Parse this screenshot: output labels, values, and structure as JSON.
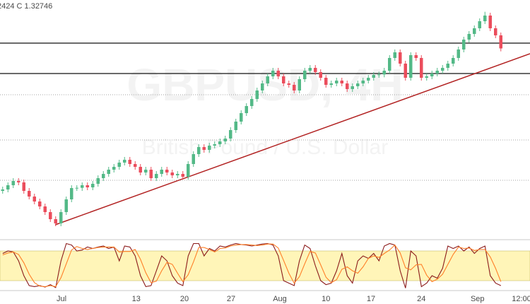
{
  "chart_data": {
    "type": "candlestick",
    "header": "2424 C 1.32746",
    "title": "GBPUSD, 4H",
    "subtitle": "British Pound / U.S. Dollar",
    "up_color": "#53b987",
    "down_color": "#eb4d5c",
    "xlim": [
      0,
      100
    ],
    "xticks": [
      {
        "value": 11.6,
        "label": "Jul"
      },
      {
        "value": 25.7,
        "label": "13"
      },
      {
        "value": 34.8,
        "label": "20"
      },
      {
        "value": 43.6,
        "label": "27"
      },
      {
        "value": 52.8,
        "label": "Aug"
      },
      {
        "value": 61.5,
        "label": "10"
      },
      {
        "value": 70,
        "label": "17"
      },
      {
        "value": 79.5,
        "label": "24"
      },
      {
        "value": 90.1,
        "label": "Sep"
      },
      {
        "value": 98.4,
        "label": "12:00"
      }
    ],
    "ylim": [
      1.2466,
      1.348
    ],
    "hlines": [
      {
        "value": 1.3297,
        "style": "solid"
      },
      {
        "value": 1.3168,
        "style": "solid"
      },
      {
        "value": 1.3078,
        "style": "dotted"
      },
      {
        "value": 1.2886,
        "style": "dotted"
      },
      {
        "value": 1.2715,
        "style": "dotted"
      }
    ],
    "trendline": {
      "color": "#b22222",
      "x": [
        10.4,
        100
      ],
      "y": [
        1.2526,
        1.3252
      ]
    },
    "candles": [
      [
        1.267,
        1.2688,
        1.2658,
        1.2676
      ],
      [
        1.2676,
        1.2706,
        1.2664,
        1.2694
      ],
      [
        1.2694,
        1.2724,
        1.2682,
        1.2712
      ],
      [
        1.2712,
        1.2724,
        1.2694,
        1.2706
      ],
      [
        1.2706,
        1.2718,
        1.2658,
        1.267
      ],
      [
        1.267,
        1.2682,
        1.2634,
        1.2646
      ],
      [
        1.2646,
        1.2658,
        1.2613,
        1.2625
      ],
      [
        1.2625,
        1.2637,
        1.2592,
        1.2604
      ],
      [
        1.2604,
        1.2616,
        1.2568,
        1.258
      ],
      [
        1.258,
        1.2592,
        1.2538,
        1.255
      ],
      [
        1.255,
        1.2562,
        1.252,
        1.2532
      ],
      [
        1.2532,
        1.2592,
        1.252,
        1.258
      ],
      [
        1.258,
        1.2646,
        1.2568,
        1.2634
      ],
      [
        1.2634,
        1.2694,
        1.2622,
        1.2682
      ],
      [
        1.2682,
        1.2694,
        1.267,
        1.2683
      ],
      [
        1.2683,
        1.2706,
        1.267,
        1.2694
      ],
      [
        1.2694,
        1.2706,
        1.2673,
        1.2685
      ],
      [
        1.2685,
        1.2712,
        1.2673,
        1.27
      ],
      [
        1.27,
        1.2736,
        1.2688,
        1.2724
      ],
      [
        1.2724,
        1.2754,
        1.2712,
        1.2742
      ],
      [
        1.2742,
        1.2772,
        1.273,
        1.276
      ],
      [
        1.276,
        1.2784,
        1.2748,
        1.2772
      ],
      [
        1.2772,
        1.2802,
        1.276,
        1.279
      ],
      [
        1.279,
        1.2814,
        1.2778,
        1.2802
      ],
      [
        1.2802,
        1.2814,
        1.2772,
        1.2784
      ],
      [
        1.2784,
        1.2796,
        1.276,
        1.2772
      ],
      [
        1.2772,
        1.2784,
        1.2736,
        1.2748
      ],
      [
        1.2748,
        1.2772,
        1.2736,
        1.276
      ],
      [
        1.276,
        1.2772,
        1.2712,
        1.2724
      ],
      [
        1.2724,
        1.2754,
        1.2712,
        1.2742
      ],
      [
        1.2742,
        1.2772,
        1.273,
        1.276
      ],
      [
        1.276,
        1.2772,
        1.2736,
        1.2748
      ],
      [
        1.2748,
        1.276,
        1.2724,
        1.2736
      ],
      [
        1.2736,
        1.2754,
        1.2724,
        1.2742
      ],
      [
        1.2742,
        1.2754,
        1.2718,
        1.273
      ],
      [
        1.273,
        1.2796,
        1.2718,
        1.2784
      ],
      [
        1.2784,
        1.2838,
        1.2772,
        1.2826
      ],
      [
        1.2826,
        1.2868,
        1.2814,
        1.2856
      ],
      [
        1.2856,
        1.2868,
        1.2832,
        1.2844
      ],
      [
        1.2844,
        1.2874,
        1.2832,
        1.2862
      ],
      [
        1.2862,
        1.288,
        1.285,
        1.2868
      ],
      [
        1.2868,
        1.2892,
        1.2856,
        1.288
      ],
      [
        1.288,
        1.2904,
        1.2868,
        1.2892
      ],
      [
        1.2892,
        1.294,
        1.288,
        1.2928
      ],
      [
        1.2928,
        1.2976,
        1.2916,
        1.2964
      ],
      [
        1.2964,
        1.3012,
        1.2952,
        1.3
      ],
      [
        1.3,
        1.3042,
        1.2988,
        1.303
      ],
      [
        1.303,
        1.3072,
        1.3018,
        1.306
      ],
      [
        1.306,
        1.3108,
        1.3048,
        1.3096
      ],
      [
        1.3096,
        1.3138,
        1.3084,
        1.3126
      ],
      [
        1.3126,
        1.3168,
        1.3114,
        1.3156
      ],
      [
        1.3156,
        1.3192,
        1.3144,
        1.318
      ],
      [
        1.318,
        1.3192,
        1.3144,
        1.3156
      ],
      [
        1.3156,
        1.3168,
        1.3114,
        1.3126
      ],
      [
        1.3126,
        1.3138,
        1.3108,
        1.312
      ],
      [
        1.312,
        1.3132,
        1.3084,
        1.3096
      ],
      [
        1.3096,
        1.3156,
        1.3084,
        1.3144
      ],
      [
        1.3144,
        1.3192,
        1.3132,
        1.318
      ],
      [
        1.318,
        1.3204,
        1.3168,
        1.3192
      ],
      [
        1.3192,
        1.3204,
        1.3162,
        1.3174
      ],
      [
        1.3174,
        1.3186,
        1.3138,
        1.315
      ],
      [
        1.315,
        1.3162,
        1.3108,
        1.312
      ],
      [
        1.312,
        1.3138,
        1.3108,
        1.3126
      ],
      [
        1.3126,
        1.315,
        1.3114,
        1.3138
      ],
      [
        1.3138,
        1.315,
        1.3114,
        1.3126
      ],
      [
        1.3126,
        1.3138,
        1.309,
        1.3102
      ],
      [
        1.3102,
        1.3126,
        1.309,
        1.3114
      ],
      [
        1.3114,
        1.3138,
        1.3102,
        1.3126
      ],
      [
        1.3126,
        1.315,
        1.3114,
        1.3138
      ],
      [
        1.3138,
        1.3162,
        1.3126,
        1.315
      ],
      [
        1.315,
        1.3174,
        1.3138,
        1.3162
      ],
      [
        1.3162,
        1.3176,
        1.315,
        1.3164
      ],
      [
        1.3164,
        1.3192,
        1.3152,
        1.318
      ],
      [
        1.318,
        1.3246,
        1.3168,
        1.3234
      ],
      [
        1.3234,
        1.327,
        1.3222,
        1.3258
      ],
      [
        1.3258,
        1.327,
        1.3198,
        1.321
      ],
      [
        1.321,
        1.3222,
        1.3138,
        1.315
      ],
      [
        1.315,
        1.3258,
        1.3138,
        1.3246
      ],
      [
        1.3246,
        1.3258,
        1.3222,
        1.3234
      ],
      [
        1.3234,
        1.3246,
        1.3138,
        1.315
      ],
      [
        1.315,
        1.3168,
        1.3138,
        1.3156
      ],
      [
        1.3156,
        1.318,
        1.3144,
        1.3168
      ],
      [
        1.3168,
        1.3192,
        1.3156,
        1.318
      ],
      [
        1.318,
        1.3204,
        1.3168,
        1.3192
      ],
      [
        1.3192,
        1.3222,
        1.318,
        1.321
      ],
      [
        1.321,
        1.3246,
        1.3198,
        1.3234
      ],
      [
        1.3234,
        1.3282,
        1.3222,
        1.327
      ],
      [
        1.327,
        1.3324,
        1.3258,
        1.3312
      ],
      [
        1.3312,
        1.3348,
        1.33,
        1.3336
      ],
      [
        1.3336,
        1.3372,
        1.3324,
        1.336
      ],
      [
        1.336,
        1.3402,
        1.3348,
        1.339
      ],
      [
        1.339,
        1.343,
        1.3378,
        1.3414
      ],
      [
        1.3414,
        1.3426,
        1.3348,
        1.336
      ],
      [
        1.336,
        1.3372,
        1.3318,
        1.333
      ],
      [
        1.333,
        1.3342,
        1.3262,
        1.32746
      ]
    ],
    "oscillator": {
      "ylim": [
        0,
        100
      ],
      "band": [
        20,
        80
      ],
      "band_color": "#fff5b8",
      "series": [
        {
          "color": "#8b1a1a",
          "values": [
            75,
            80,
            78,
            60,
            30,
            10,
            8,
            10,
            7,
            12,
            6,
            60,
            95,
            92,
            80,
            82,
            88,
            85,
            88,
            90,
            85,
            88,
            60,
            90,
            88,
            70,
            30,
            8,
            10,
            40,
            70,
            60,
            30,
            15,
            10,
            70,
            95,
            95,
            70,
            85,
            80,
            90,
            88,
            92,
            95,
            93,
            92,
            90,
            92,
            94,
            95,
            92,
            70,
            20,
            15,
            10,
            60,
            92,
            85,
            50,
            20,
            12,
            15,
            40,
            75,
            30,
            15,
            60,
            70,
            65,
            75,
            60,
            90,
            95,
            92,
            40,
            5,
            80,
            70,
            8,
            15,
            30,
            25,
            45,
            90,
            85,
            90,
            80,
            88,
            75,
            85,
            90,
            30,
            15,
            10
          ]
        },
        {
          "color": "#ff7f27",
          "values": [
            72,
            76,
            78,
            73,
            56,
            33,
            16,
            9,
            8,
            10,
            8,
            26,
            54,
            82,
            89,
            85,
            83,
            85,
            87,
            88,
            88,
            88,
            78,
            79,
            79,
            83,
            63,
            36,
            16,
            19,
            40,
            57,
            53,
            35,
            18,
            32,
            58,
            87,
            87,
            83,
            78,
            85,
            86,
            90,
            92,
            93,
            93,
            92,
            91,
            92,
            94,
            94,
            86,
            61,
            35,
            15,
            28,
            54,
            79,
            76,
            52,
            27,
            16,
            22,
            43,
            48,
            40,
            35,
            48,
            65,
            70,
            67,
            75,
            82,
            92,
            76,
            46,
            42,
            52,
            53,
            31,
            18,
            23,
            33,
            53,
            73,
            88,
            85,
            86,
            81,
            83,
            83,
            68,
            45,
            18
          ]
        }
      ]
    }
  }
}
